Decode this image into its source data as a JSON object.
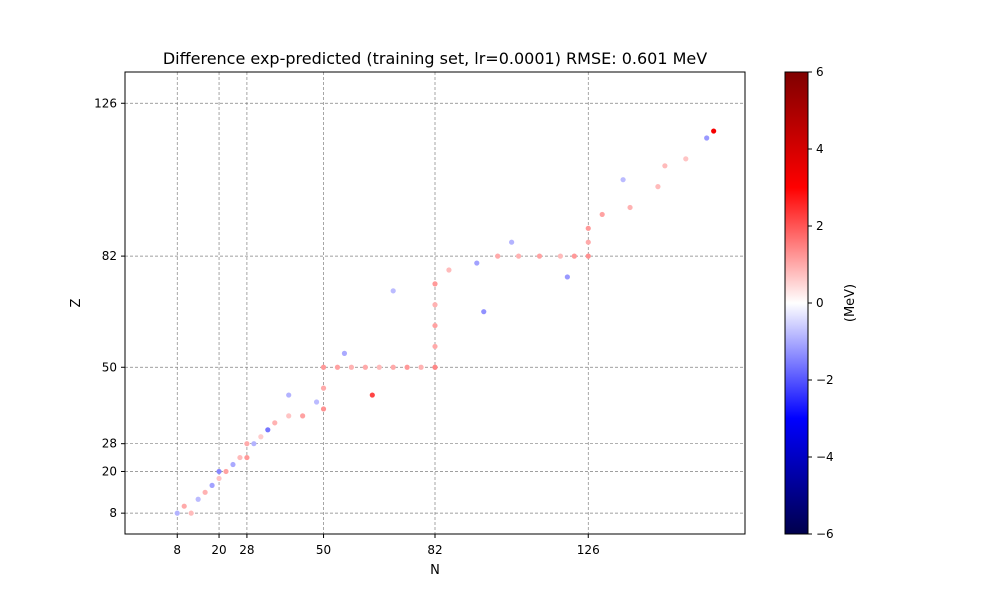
{
  "chart_data": {
    "type": "scatter",
    "title": "Difference exp-predicted (training set, lr=0.0001)  RMSE: 0.601 MeV",
    "xlabel": "N",
    "ylabel": "Z",
    "xlim": [
      -7,
      171
    ],
    "ylim": [
      2,
      135
    ],
    "xticks": [
      8,
      20,
      28,
      50,
      82,
      126
    ],
    "yticks": [
      8,
      20,
      28,
      50,
      82,
      126
    ],
    "grid": true,
    "colorbar": {
      "label": "(MeV)",
      "range": [
        -6,
        6
      ],
      "ticks": [
        6,
        4,
        2,
        0,
        -2,
        -4,
        -6
      ],
      "tick_labels": [
        "6",
        "4",
        "2",
        "0",
        "−2",
        "−4",
        "−6"
      ],
      "colormap": "seismic",
      "colors": [
        "#00004c",
        "#0000ff",
        "#ffffff",
        "#ff0000",
        "#7f0000"
      ]
    },
    "points": [
      {
        "n": 8,
        "z": 8,
        "d": -0.9
      },
      {
        "n": 12,
        "z": 8,
        "d": 0.8
      },
      {
        "n": 10,
        "z": 10,
        "d": 1.0
      },
      {
        "n": 14,
        "z": 12,
        "d": -0.8
      },
      {
        "n": 16,
        "z": 14,
        "d": 0.9
      },
      {
        "n": 18,
        "z": 16,
        "d": -1.1
      },
      {
        "n": 20,
        "z": 18,
        "d": 0.7
      },
      {
        "n": 20,
        "z": 20,
        "d": -1.4
      },
      {
        "n": 22,
        "z": 20,
        "d": 1.1
      },
      {
        "n": 24,
        "z": 22,
        "d": -1.0
      },
      {
        "n": 26,
        "z": 24,
        "d": 0.8
      },
      {
        "n": 28,
        "z": 24,
        "d": 1.2
      },
      {
        "n": 28,
        "z": 28,
        "d": 1.0
      },
      {
        "n": 30,
        "z": 28,
        "d": -0.9
      },
      {
        "n": 32,
        "z": 30,
        "d": 0.6
      },
      {
        "n": 34,
        "z": 32,
        "d": -1.6
      },
      {
        "n": 36,
        "z": 34,
        "d": 0.9
      },
      {
        "n": 40,
        "z": 36,
        "d": 0.7
      },
      {
        "n": 44,
        "z": 36,
        "d": 1.1
      },
      {
        "n": 48,
        "z": 40,
        "d": -0.8
      },
      {
        "n": 50,
        "z": 38,
        "d": 1.3
      },
      {
        "n": 50,
        "z": 44,
        "d": 1.0
      },
      {
        "n": 50,
        "z": 50,
        "d": 1.2
      },
      {
        "n": 54,
        "z": 50,
        "d": 1.1
      },
      {
        "n": 58,
        "z": 50,
        "d": 0.9
      },
      {
        "n": 62,
        "z": 50,
        "d": 1.0
      },
      {
        "n": 64,
        "z": 42,
        "d": 2.2
      },
      {
        "n": 66,
        "z": 50,
        "d": 0.8
      },
      {
        "n": 70,
        "z": 50,
        "d": 1.0
      },
      {
        "n": 74,
        "z": 50,
        "d": 1.2
      },
      {
        "n": 78,
        "z": 50,
        "d": 0.9
      },
      {
        "n": 82,
        "z": 50,
        "d": 1.4
      },
      {
        "n": 82,
        "z": 56,
        "d": 1.0
      },
      {
        "n": 82,
        "z": 62,
        "d": 1.1
      },
      {
        "n": 82,
        "z": 68,
        "d": 0.9
      },
      {
        "n": 82,
        "z": 74,
        "d": 1.2
      },
      {
        "n": 86,
        "z": 78,
        "d": 0.8
      },
      {
        "n": 94,
        "z": 80,
        "d": -1.1
      },
      {
        "n": 100,
        "z": 82,
        "d": 1.0
      },
      {
        "n": 106,
        "z": 82,
        "d": 0.9
      },
      {
        "n": 112,
        "z": 82,
        "d": 1.1
      },
      {
        "n": 118,
        "z": 82,
        "d": 0.8
      },
      {
        "n": 122,
        "z": 82,
        "d": 1.2
      },
      {
        "n": 126,
        "z": 82,
        "d": 1.3
      },
      {
        "n": 126,
        "z": 86,
        "d": 1.0
      },
      {
        "n": 126,
        "z": 90,
        "d": 1.2
      },
      {
        "n": 130,
        "z": 94,
        "d": 1.1
      },
      {
        "n": 138,
        "z": 96,
        "d": 0.9
      },
      {
        "n": 146,
        "z": 102,
        "d": 0.8
      },
      {
        "n": 154,
        "z": 110,
        "d": 0.7
      },
      {
        "n": 160,
        "z": 116,
        "d": -1.2
      },
      {
        "n": 162,
        "z": 118,
        "d": 3.2
      },
      {
        "n": 70,
        "z": 72,
        "d": -0.8
      },
      {
        "n": 96,
        "z": 66,
        "d": -1.3
      },
      {
        "n": 120,
        "z": 76,
        "d": -1.2
      },
      {
        "n": 104,
        "z": 86,
        "d": -0.9
      },
      {
        "n": 56,
        "z": 54,
        "d": -1.0
      },
      {
        "n": 40,
        "z": 42,
        "d": -0.9
      },
      {
        "n": 148,
        "z": 108,
        "d": 0.8
      },
      {
        "n": 136,
        "z": 104,
        "d": -0.8
      }
    ]
  }
}
